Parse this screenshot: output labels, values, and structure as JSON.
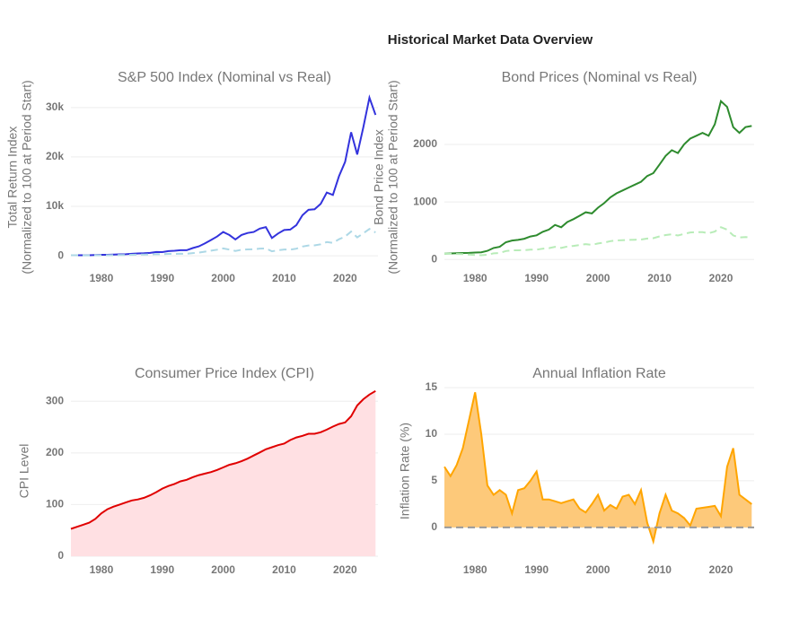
{
  "title": "Historical Market Data Overview",
  "chart_data": [
    {
      "type": "line",
      "title": "S&P 500 Index (Nominal vs Real)",
      "ylabel": [
        "Total Return Index",
        "(Normalized to 100 at Period Start)"
      ],
      "x": [
        1975,
        1976,
        1977,
        1978,
        1979,
        1980,
        1981,
        1982,
        1983,
        1984,
        1985,
        1986,
        1987,
        1988,
        1989,
        1990,
        1991,
        1992,
        1993,
        1994,
        1995,
        1996,
        1997,
        1998,
        1999,
        2000,
        2001,
        2002,
        2003,
        2004,
        2005,
        2006,
        2007,
        2008,
        2009,
        2010,
        2011,
        2012,
        2013,
        2014,
        2015,
        2016,
        2017,
        2018,
        2019,
        2020,
        2021,
        2022,
        2023,
        2024,
        2025
      ],
      "series": [
        {
          "color": "#3333dd",
          "dash": false,
          "values": [
            100,
            110,
            105,
            115,
            140,
            200,
            190,
            230,
            280,
            300,
            400,
            470,
            500,
            580,
            760,
            740,
            950,
            1020,
            1120,
            1130,
            1550,
            1900,
            2500,
            3200,
            3900,
            4800,
            4200,
            3300,
            4200,
            4600,
            4800,
            5500,
            5800,
            3600,
            4500,
            5200,
            5300,
            6200,
            8200,
            9300,
            9400,
            10500,
            12800,
            12300,
            16100,
            19000,
            25000,
            20500,
            26000,
            32000,
            28500
          ]
        },
        {
          "color": "#add8e6",
          "dash": true,
          "values": [
            100,
            103,
            91,
            94,
            103,
            128,
            111,
            128,
            149,
            153,
            197,
            228,
            236,
            262,
            327,
            302,
            372,
            387,
            411,
            405,
            536,
            641,
            828,
            1040,
            1230,
            1479,
            1255,
            972,
            1210,
            1290,
            1305,
            1450,
            1485,
            904,
            1110,
            1264,
            1248,
            1428,
            1864,
            2080,
            2102,
            2319,
            2768,
            2597,
            3333,
            3890,
            4890,
            3720,
            4530,
            5420,
            4720
          ]
        }
      ],
      "xlim": [
        1975,
        2025.4
      ],
      "xticks": [
        1980,
        1990,
        2000,
        2010,
        2020
      ],
      "ylim": [
        -1800,
        33600
      ],
      "yticks": [
        0,
        {
          "value": 10000,
          "label": "10k"
        },
        {
          "value": 20000,
          "label": "20k"
        },
        {
          "value": 30000,
          "label": "30k"
        }
      ],
      "grid": true
    },
    {
      "type": "line",
      "title": "Bond Prices (Nominal vs Real)",
      "ylabel": [
        "Bond Price Index",
        "(Normalized to 100 at Period Start)"
      ],
      "x": [
        1975,
        1976,
        1977,
        1978,
        1979,
        1980,
        1981,
        1982,
        1983,
        1984,
        1985,
        1986,
        1987,
        1988,
        1989,
        1990,
        1991,
        1992,
        1993,
        1994,
        1995,
        1996,
        1997,
        1998,
        1999,
        2000,
        2001,
        2002,
        2003,
        2004,
        2005,
        2006,
        2007,
        2008,
        2009,
        2010,
        2011,
        2012,
        2013,
        2014,
        2015,
        2016,
        2017,
        2018,
        2019,
        2020,
        2021,
        2022,
        2023,
        2024,
        2025
      ],
      "series": [
        {
          "color": "#2e8b2e",
          "dash": false,
          "values": [
            100,
            105,
            110,
            112,
            115,
            120,
            125,
            150,
            200,
            220,
            300,
            330,
            340,
            360,
            400,
            420,
            480,
            520,
            600,
            560,
            650,
            700,
            760,
            820,
            800,
            900,
            980,
            1080,
            1150,
            1200,
            1250,
            1300,
            1350,
            1450,
            1500,
            1650,
            1800,
            1900,
            1850,
            2000,
            2100,
            2150,
            2200,
            2150,
            2350,
            2750,
            2650,
            2300,
            2200,
            2300,
            2320
          ]
        },
        {
          "color": "#b8ecb8",
          "dash": true,
          "values": [
            100,
            98,
            96,
            92,
            85,
            77,
            73,
            83,
            106,
            112,
            147,
            159,
            160,
            162,
            171,
            171,
            188,
            197,
            220,
            201,
            225,
            236,
            252,
            267,
            254,
            278,
            294,
            318,
            331,
            336,
            340,
            343,
            346,
            364,
            370,
            401,
            424,
            437,
            417,
            445,
            469,
            474,
            475,
            455,
            486,
            562,
            518,
            418,
            383,
            390,
            384
          ]
        }
      ],
      "xlim": [
        1975,
        2025.4
      ],
      "xticks": [
        1980,
        1990,
        2000,
        2010,
        2020
      ],
      "ylim": [
        -90,
        2950
      ],
      "yticks": [
        0,
        1000,
        2000
      ],
      "grid": true
    },
    {
      "type": "area",
      "title": "Consumer Price Index (CPI)",
      "ylabel": [
        "CPI Level"
      ],
      "x": [
        1975,
        1976,
        1977,
        1978,
        1979,
        1980,
        1981,
        1982,
        1983,
        1984,
        1985,
        1986,
        1987,
        1988,
        1989,
        1990,
        1991,
        1992,
        1993,
        1994,
        1995,
        1996,
        1997,
        1998,
        1999,
        2000,
        2001,
        2002,
        2003,
        2004,
        2005,
        2006,
        2007,
        2008,
        2009,
        2010,
        2011,
        2012,
        2013,
        2014,
        2015,
        2016,
        2017,
        2018,
        2019,
        2020,
        2021,
        2022,
        2023,
        2024,
        2025
      ],
      "series": [
        {
          "color": "#e00000",
          "fill_color": "#ffe0e3",
          "values": [
            53,
            57,
            61,
            65,
            72,
            83,
            91,
            96,
            100,
            104,
            108,
            110,
            113,
            118,
            124,
            131,
            136,
            140,
            145,
            148,
            153,
            157,
            160,
            163,
            167,
            172,
            177,
            180,
            184,
            189,
            195,
            201,
            207,
            211,
            215,
            218,
            225,
            230,
            233,
            237,
            237,
            240,
            245,
            251,
            256,
            259,
            271,
            292,
            304,
            313,
            320
          ]
        }
      ],
      "xlim": [
        1975,
        2025.4
      ],
      "xticks": [
        1980,
        1990,
        2000,
        2010,
        2020
      ],
      "ylim": [
        0,
        330
      ],
      "yticks": [
        0,
        100,
        200,
        300
      ],
      "grid": true
    },
    {
      "type": "area",
      "title": "Annual Inflation Rate",
      "ylabel": [
        "Inflation Rate (%)"
      ],
      "x": [
        1975,
        1976,
        1977,
        1978,
        1979,
        1980,
        1981,
        1982,
        1983,
        1984,
        1985,
        1986,
        1987,
        1988,
        1989,
        1990,
        1991,
        1992,
        1993,
        1994,
        1995,
        1996,
        1997,
        1998,
        1999,
        2000,
        2001,
        2002,
        2003,
        2004,
        2005,
        2006,
        2007,
        2008,
        2009,
        2010,
        2011,
        2012,
        2013,
        2014,
        2015,
        2016,
        2017,
        2018,
        2019,
        2020,
        2021,
        2022,
        2023,
        2024,
        2025
      ],
      "series": [
        {
          "color": "#ffa500",
          "fill_color": "#fdc97a",
          "values": [
            6.5,
            5.5,
            6.7,
            8.5,
            11.5,
            14.5,
            10,
            4.5,
            3.5,
            4,
            3.5,
            1.5,
            4,
            4.2,
            5,
            6,
            3,
            3,
            2.8,
            2.6,
            2.8,
            3,
            2,
            1.6,
            2.5,
            3.5,
            1.8,
            2.4,
            2,
            3.3,
            3.5,
            2.5,
            4,
            0.5,
            -1.5,
            1.5,
            3.5,
            1.8,
            1.5,
            1,
            0.2,
            2,
            2.1,
            2.2,
            2.3,
            1.2,
            6.5,
            8.5,
            3.5,
            3,
            2.5
          ]
        }
      ],
      "reference_line": 0,
      "xlim": [
        1975,
        2025.4
      ],
      "xticks": [
        1980,
        1990,
        2000,
        2010,
        2020
      ],
      "ylim": [
        -3.1,
        15.2
      ],
      "yticks": [
        0,
        5,
        10,
        15
      ],
      "grid": true
    }
  ]
}
